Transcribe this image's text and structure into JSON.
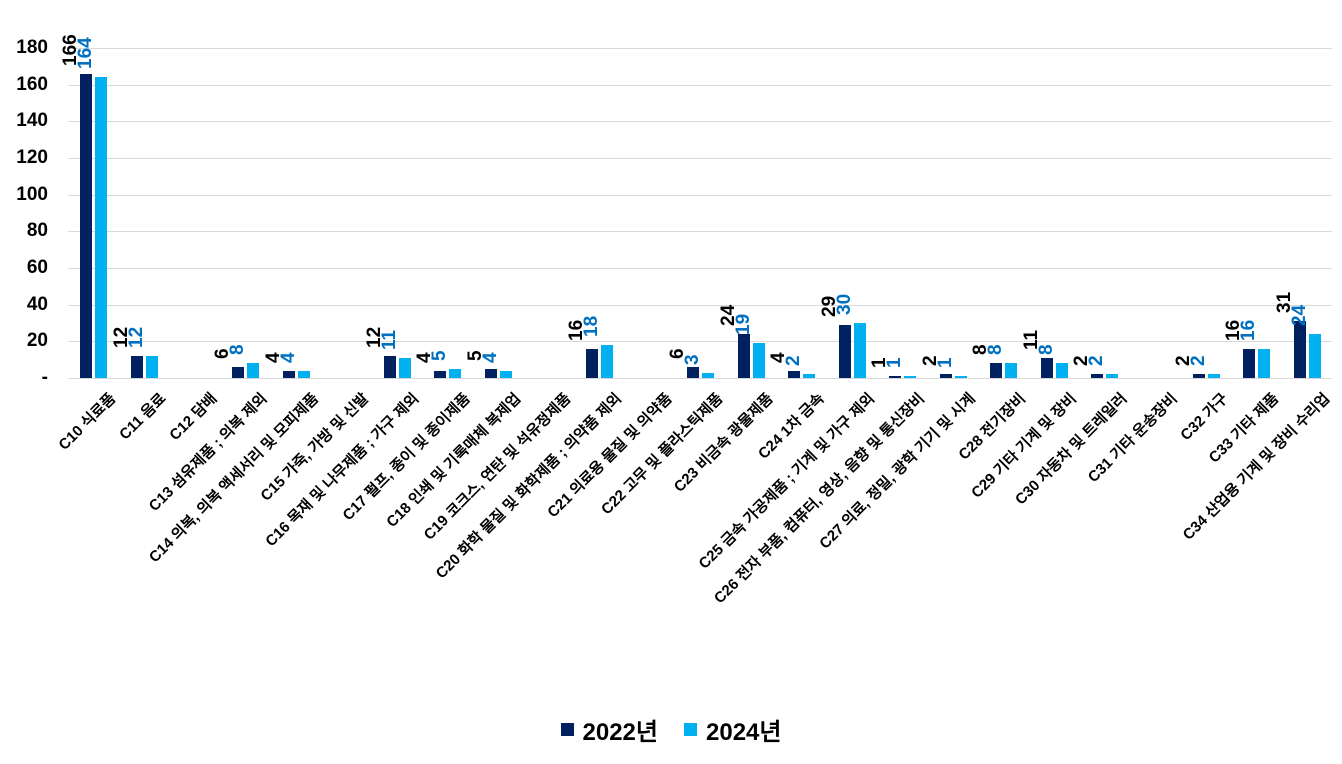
{
  "chart_data": {
    "type": "bar",
    "title": "",
    "xlabel": "",
    "ylabel": "",
    "grid": true,
    "gridline_color": "#D9D9D9",
    "legend_position": "bottom",
    "ylim": [
      0,
      180
    ],
    "yticks": [
      {
        "value": 0,
        "label": "-"
      },
      {
        "value": 20,
        "label": "20"
      },
      {
        "value": 40,
        "label": "40"
      },
      {
        "value": 60,
        "label": "60"
      },
      {
        "value": 80,
        "label": "80"
      },
      {
        "value": 100,
        "label": "100"
      },
      {
        "value": 120,
        "label": "120"
      },
      {
        "value": 140,
        "label": "140"
      },
      {
        "value": 160,
        "label": "160"
      },
      {
        "value": 180,
        "label": "180"
      }
    ],
    "categories": [
      "C10 식료품",
      "C11 음료",
      "C12 담배",
      "C13 섬유제품 ; 의복 제외",
      "C14 의복, 의복 액세서리 및 모피제품",
      "C15 가죽, 가방 및 신발",
      "C16 목재 및 나무제품 ; 가구 제외",
      "C17 펄프, 종이 및 종이제품",
      "C18 인쇄 및 기록매체 복제업",
      "C19 코크스, 연탄 및 석유정제품",
      "C20 화학 물질 및 화학제품 ; 의약품 제외",
      "C21 의료용 물질 및 의약품",
      "C22 고무 및 플라스틱제품",
      "C23 비금속 광물제품",
      "C24 1차 금속",
      "C25 금속 가공제품 ; 기계 및 가구 제외",
      "C26 전자 부품, 컴퓨터, 영상, 음향 및 통신장비",
      "C27 의료, 정밀, 광학 기기 및 시계",
      "C28 전기장비",
      "C29 기타 기계 및 장비",
      "C30 자동차 및 트레일러",
      "C31 기타 운송장비",
      "C32 가구",
      "C33 기타 제품",
      "C34 산업용 기계 및 장비 수리업"
    ],
    "series": [
      {
        "name": "2022년",
        "color": "#002060",
        "label_color": "#000000",
        "values": [
          166,
          12,
          null,
          6,
          4,
          null,
          12,
          4,
          5,
          null,
          16,
          null,
          6,
          24,
          4,
          29,
          1,
          2,
          8,
          11,
          2,
          null,
          2,
          16,
          31
        ]
      },
      {
        "name": "2024년",
        "color": "#00B0F0",
        "label_color": "#0070C0",
        "values": [
          164,
          12,
          null,
          8,
          4,
          null,
          11,
          5,
          4,
          null,
          18,
          null,
          3,
          19,
          2,
          30,
          1,
          1,
          8,
          8,
          2,
          null,
          2,
          16,
          24
        ]
      }
    ]
  }
}
